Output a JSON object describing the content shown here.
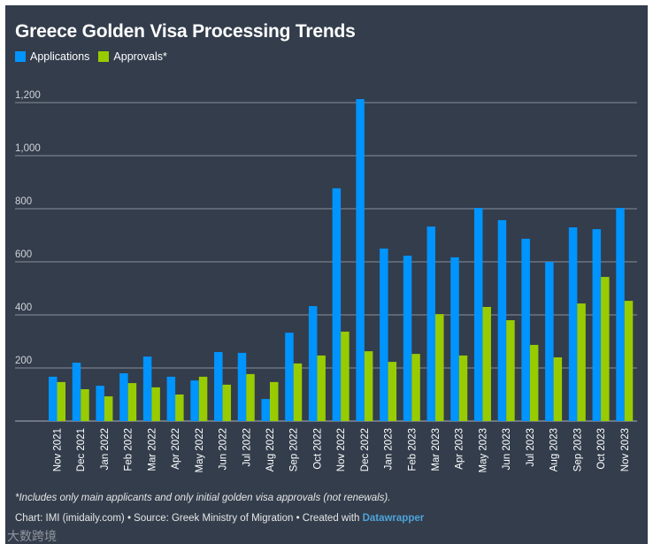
{
  "chart_data": {
    "type": "bar",
    "title": "Greece Golden Visa Processing Trends",
    "categories": [
      "Nov 2021",
      "Dec 2021",
      "Jan 2022",
      "Feb 2022",
      "Mar 2022",
      "Apr 2022",
      "May 2022",
      "Jun 2022",
      "Jul 2022",
      "Aug 2022",
      "Sep 2022",
      "Oct 2022",
      "Nov 2022",
      "Dec 2022",
      "Jan 2023",
      "Feb 2023",
      "Mar 2023",
      "Apr 2023",
      "May 2023",
      "Jun 2023",
      "Jul 2023",
      "Aug 2023",
      "Sep 2023",
      "Oct 2023",
      "Nov 2023"
    ],
    "series": [
      {
        "name": "Applications",
        "color": "#0094ff",
        "values": [
          167,
          220,
          133,
          180,
          243,
          167,
          153,
          260,
          257,
          83,
          333,
          433,
          877,
          1213,
          650,
          623,
          733,
          617,
          803,
          757,
          687,
          600,
          730,
          723,
          803
        ]
      },
      {
        "name": "Approvals*",
        "color": "#99cc00",
        "values": [
          147,
          120,
          93,
          143,
          127,
          100,
          167,
          137,
          177,
          147,
          217,
          247,
          337,
          263,
          223,
          253,
          403,
          247,
          430,
          380,
          287,
          240,
          443,
          543,
          453
        ]
      }
    ],
    "yticks": [
      "200",
      "400",
      "600",
      "800",
      "1,000",
      "1,200"
    ],
    "ytick_values": [
      200,
      400,
      600,
      800,
      1000,
      1200
    ],
    "ylim": [
      0,
      1200
    ],
    "grid": true,
    "legend_position": "top-left",
    "xlabel": "",
    "ylabel": ""
  },
  "footer": {
    "note": "*Includes only main applicants and only initial golden visa approvals (not renewals).",
    "credit": "Chart: IMI (imidaily.com) • Source: Greek Ministry of Migration • Created with ",
    "credit_link": "Datawrapper",
    "watermark": "大数跨境"
  }
}
